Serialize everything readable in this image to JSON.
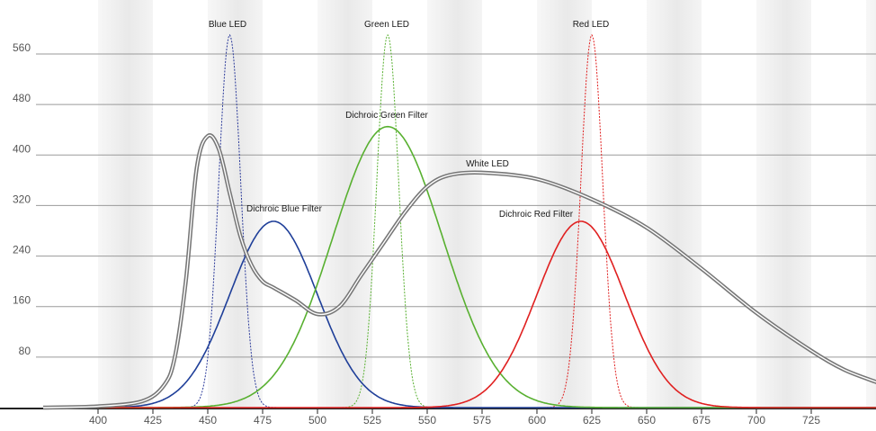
{
  "chart_data": {
    "type": "line",
    "xlabel": "",
    "ylabel": "",
    "xlim": [
      375,
      755
    ],
    "ylim": [
      0,
      600
    ],
    "x_ticks": [
      400,
      425,
      450,
      475,
      500,
      525,
      550,
      575,
      600,
      625,
      650,
      675,
      700,
      725
    ],
    "y_ticks": [
      80,
      160,
      240,
      320,
      400,
      480,
      560
    ],
    "grid": "horizontal",
    "background": "alternating vertical grey bands",
    "series": [
      {
        "name": "Blue LED",
        "color": "#2b3a9a",
        "style": "dotted",
        "shape": "gaussian",
        "peak_x": 460,
        "peak_y": 590,
        "sigma": 5
      },
      {
        "name": "Green LED",
        "color": "#58b030",
        "style": "dotted",
        "shape": "gaussian",
        "peak_x": 532,
        "peak_y": 590,
        "sigma": 5
      },
      {
        "name": "Red LED",
        "color": "#e02020",
        "style": "dotted",
        "shape": "gaussian",
        "peak_x": 625,
        "peak_y": 590,
        "sigma": 5
      },
      {
        "name": "Dichroic Blue Filter",
        "color": "#1f3f99",
        "style": "solid",
        "shape": "gaussian",
        "peak_x": 480,
        "peak_y": 295,
        "sigma": 20
      },
      {
        "name": "Dichroic Green Filter",
        "color": "#58b030",
        "style": "solid",
        "shape": "gaussian",
        "peak_x": 532,
        "peak_y": 445,
        "sigma": 25
      },
      {
        "name": "Dichroic Red Filter",
        "color": "#e02020",
        "style": "solid",
        "shape": "gaussian",
        "peak_x": 620,
        "peak_y": 295,
        "sigma": 20
      },
      {
        "name": "White LED",
        "color": "#777777",
        "style": "double",
        "x": [
          375,
          400,
          420,
          430,
          435,
          440,
          445,
          450,
          455,
          460,
          465,
          470,
          475,
          480,
          490,
          500,
          510,
          520,
          530,
          540,
          550,
          560,
          575,
          600,
          625,
          650,
          675,
          700,
          725,
          740,
          755
        ],
        "y": [
          0,
          2,
          10,
          35,
          80,
          200,
          380,
          430,
          410,
          340,
          270,
          225,
          200,
          190,
          170,
          148,
          160,
          210,
          260,
          310,
          350,
          368,
          372,
          362,
          330,
          285,
          220,
          150,
          90,
          60,
          40
        ]
      }
    ]
  }
}
